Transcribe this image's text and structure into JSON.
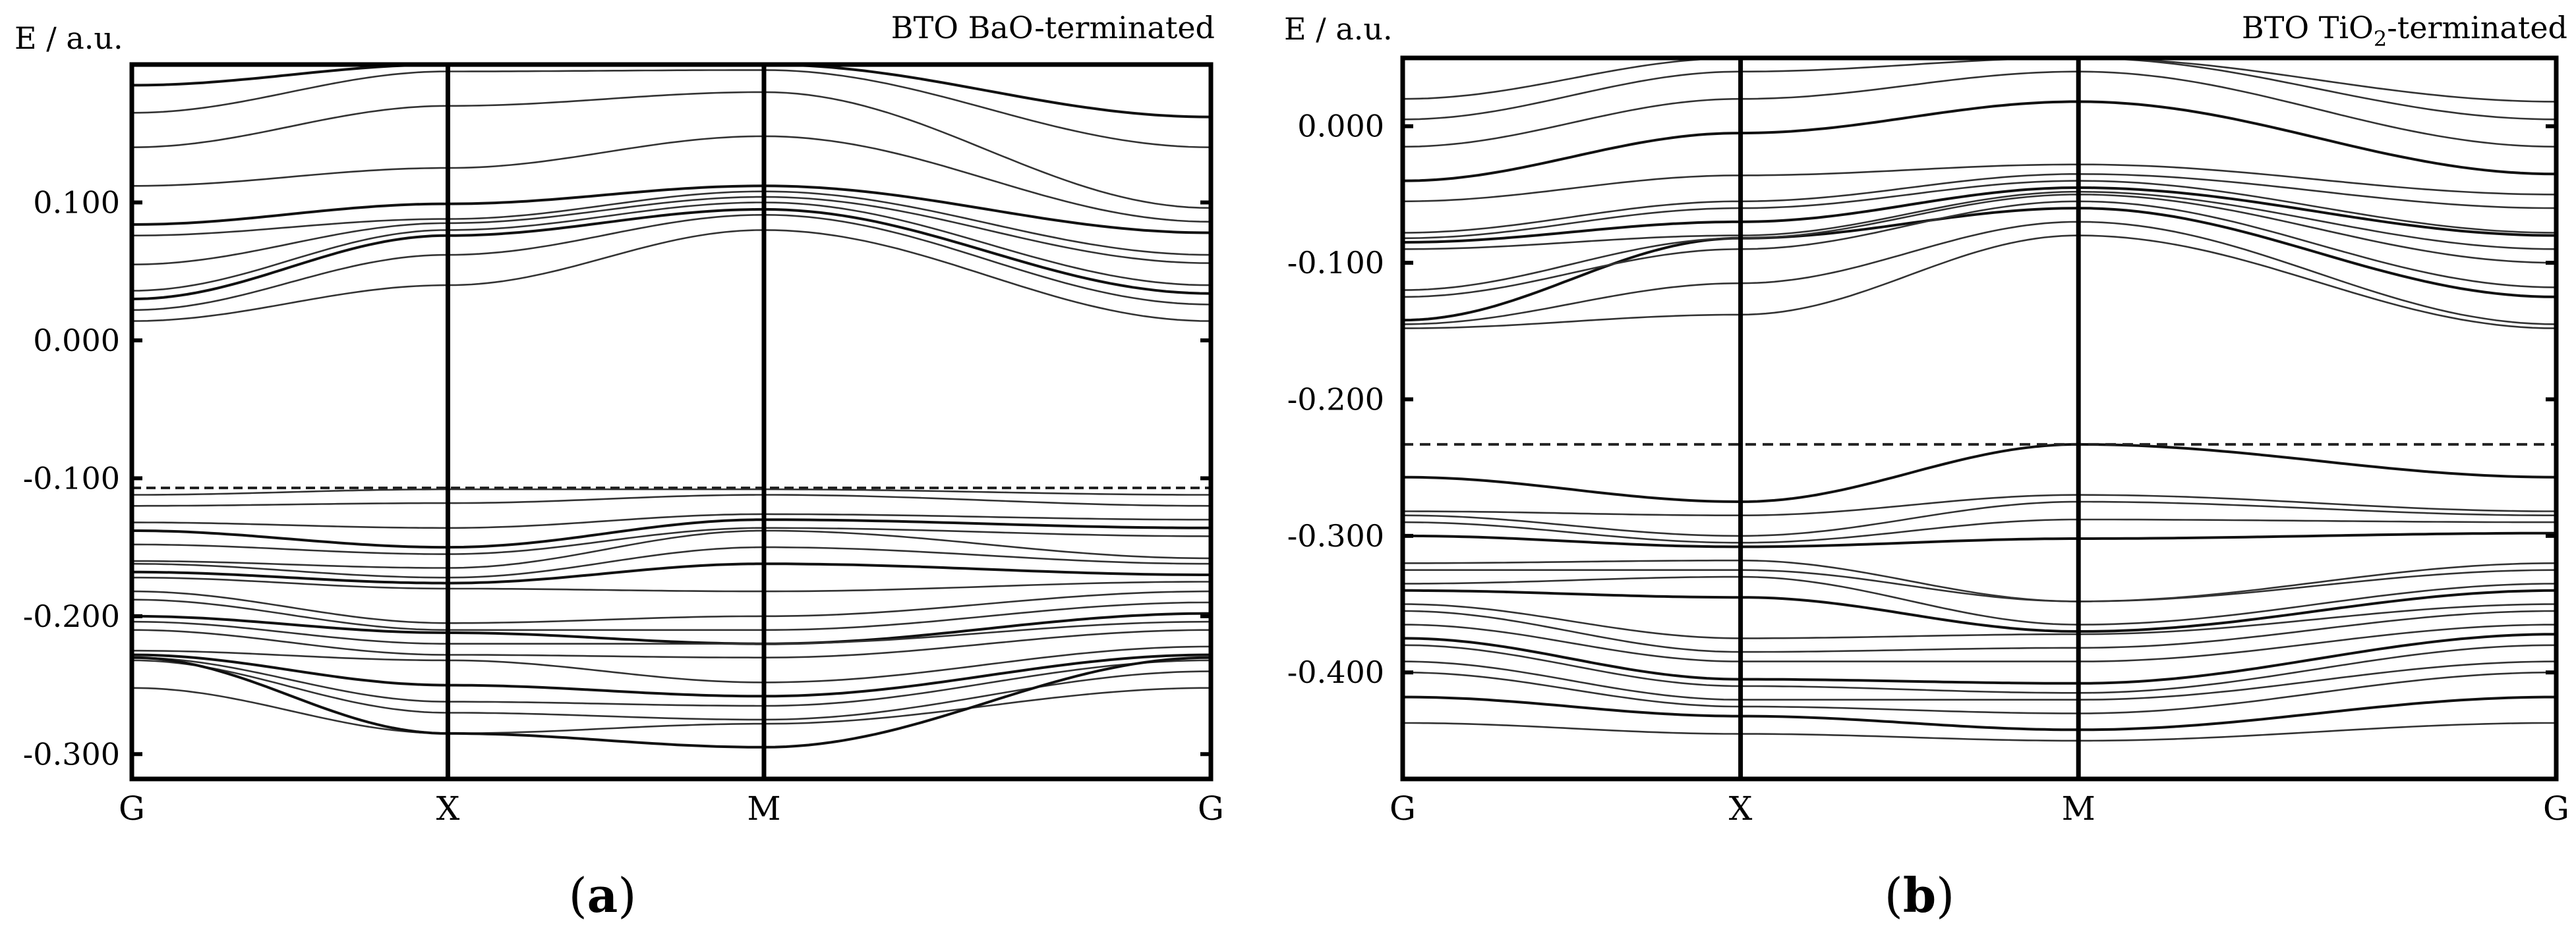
{
  "chart_data": [
    {
      "type": "line",
      "panel": "(a)",
      "panel_letter": "a",
      "title": "BTO BaO-terminated",
      "title_parts": [
        "BTO BaO-terminated"
      ],
      "ylabel": "E / a.u.",
      "xlabel": "",
      "ylim": [
        -0.318,
        0.2
      ],
      "yticks": [
        0.1,
        0.0,
        -0.1,
        -0.2,
        -0.3
      ],
      "ytick_labels": [
        "0.100",
        "0.000",
        "-0.100",
        "-0.200",
        "-0.300"
      ],
      "kpath": [
        "G",
        "X",
        "M",
        "G"
      ],
      "kpoints": [
        0,
        1,
        2,
        3.414
      ],
      "fermi_level": -0.107,
      "fermi_style": "dashed",
      "series": [
        {
          "name": "c1",
          "values": [
            0.014,
            0.04,
            0.08,
            0.014
          ]
        },
        {
          "name": "c2",
          "values": [
            0.022,
            0.062,
            0.091,
            0.026
          ]
        },
        {
          "name": "c3",
          "values": [
            0.03,
            0.076,
            0.095,
            0.034
          ]
        },
        {
          "name": "c4",
          "values": [
            0.036,
            0.08,
            0.1,
            0.04
          ]
        },
        {
          "name": "c5",
          "values": [
            0.055,
            0.085,
            0.104,
            0.056
          ]
        },
        {
          "name": "c6",
          "values": [
            0.076,
            0.088,
            0.108,
            0.062
          ]
        },
        {
          "name": "c7",
          "values": [
            0.084,
            0.099,
            0.112,
            0.078
          ]
        },
        {
          "name": "c8",
          "values": [
            0.112,
            0.125,
            0.148,
            0.086
          ]
        },
        {
          "name": "c9",
          "values": [
            0.14,
            0.17,
            0.18,
            0.096
          ]
        },
        {
          "name": "c10",
          "values": [
            0.165,
            0.195,
            0.196,
            0.14
          ]
        },
        {
          "name": "c11",
          "values": [
            0.185,
            0.2,
            0.2,
            0.162
          ]
        },
        {
          "name": "v1",
          "values": [
            -0.112,
            -0.108,
            -0.108,
            -0.112
          ]
        },
        {
          "name": "v2",
          "values": [
            -0.12,
            -0.118,
            -0.112,
            -0.12
          ]
        },
        {
          "name": "v3",
          "values": [
            -0.132,
            -0.136,
            -0.126,
            -0.13
          ]
        },
        {
          "name": "v4",
          "values": [
            -0.138,
            -0.15,
            -0.13,
            -0.136
          ]
        },
        {
          "name": "v5",
          "values": [
            -0.148,
            -0.155,
            -0.136,
            -0.142
          ]
        },
        {
          "name": "v6",
          "values": [
            -0.16,
            -0.165,
            -0.138,
            -0.158
          ]
        },
        {
          "name": "v7",
          "values": [
            -0.162,
            -0.172,
            -0.15,
            -0.162
          ]
        },
        {
          "name": "v8",
          "values": [
            -0.168,
            -0.176,
            -0.162,
            -0.17
          ]
        },
        {
          "name": "v9",
          "values": [
            -0.172,
            -0.18,
            -0.182,
            -0.175
          ]
        },
        {
          "name": "v10",
          "values": [
            -0.182,
            -0.205,
            -0.2,
            -0.182
          ]
        },
        {
          "name": "v11",
          "values": [
            -0.188,
            -0.21,
            -0.21,
            -0.19
          ]
        },
        {
          "name": "v12",
          "values": [
            -0.2,
            -0.212,
            -0.22,
            -0.198
          ]
        },
        {
          "name": "v13",
          "values": [
            -0.204,
            -0.22,
            -0.22,
            -0.204
          ]
        },
        {
          "name": "v14",
          "values": [
            -0.21,
            -0.228,
            -0.23,
            -0.21
          ]
        },
        {
          "name": "v15",
          "values": [
            -0.225,
            -0.232,
            -0.248,
            -0.222
          ]
        },
        {
          "name": "v16",
          "values": [
            -0.228,
            -0.25,
            -0.258,
            -0.228
          ]
        },
        {
          "name": "v17",
          "values": [
            -0.23,
            -0.262,
            -0.265,
            -0.232
          ]
        },
        {
          "name": "v18",
          "values": [
            -0.232,
            -0.27,
            -0.275,
            -0.24
          ]
        },
        {
          "name": "v19",
          "values": [
            -0.252,
            -0.285,
            -0.278,
            -0.252
          ]
        },
        {
          "name": "v20",
          "values": [
            -0.23,
            -0.285,
            -0.295,
            -0.23
          ]
        }
      ]
    },
    {
      "type": "line",
      "panel": "(b)",
      "panel_letter": "b",
      "title": "BTO TiO2-terminated",
      "title_parts": [
        "BTO TiO",
        "2",
        "-terminated"
      ],
      "ylabel": "E / a.u.",
      "xlabel": "",
      "ylim": [
        -0.478,
        0.05
      ],
      "yticks": [
        0.0,
        -0.1,
        -0.2,
        -0.3,
        -0.4
      ],
      "ytick_labels": [
        "0.000",
        "-0.100",
        "-0.200",
        "-0.300",
        "-0.400"
      ],
      "kpath": [
        "G",
        "X",
        "M",
        "G"
      ],
      "kpoints": [
        0,
        1,
        2,
        3.414
      ],
      "fermi_level": -0.233,
      "fermi_style": "dashed",
      "series": [
        {
          "name": "c1",
          "values": [
            -0.148,
            -0.138,
            -0.08,
            -0.148
          ]
        },
        {
          "name": "c2",
          "values": [
            -0.145,
            -0.115,
            -0.07,
            -0.145
          ]
        },
        {
          "name": "c3",
          "values": [
            -0.142,
            -0.082,
            -0.06,
            -0.125
          ]
        },
        {
          "name": "c4",
          "values": [
            -0.125,
            -0.09,
            -0.055,
            -0.118
          ]
        },
        {
          "name": "c5",
          "values": [
            -0.12,
            -0.082,
            -0.05,
            -0.1
          ]
        },
        {
          "name": "c6",
          "values": [
            -0.09,
            -0.08,
            -0.048,
            -0.09
          ]
        },
        {
          "name": "c7",
          "values": [
            -0.085,
            -0.07,
            -0.045,
            -0.08
          ]
        },
        {
          "name": "c8",
          "values": [
            -0.082,
            -0.06,
            -0.04,
            -0.078
          ]
        },
        {
          "name": "c9",
          "values": [
            -0.078,
            -0.055,
            -0.035,
            -0.06
          ]
        },
        {
          "name": "c10",
          "values": [
            -0.055,
            -0.036,
            -0.028,
            -0.05
          ]
        },
        {
          "name": "c11",
          "values": [
            -0.04,
            -0.005,
            0.018,
            -0.035
          ]
        },
        {
          "name": "c12",
          "values": [
            -0.015,
            0.02,
            0.04,
            -0.015
          ]
        },
        {
          "name": "c13",
          "values": [
            0.005,
            0.04,
            0.05,
            0.005
          ]
        },
        {
          "name": "c14",
          "values": [
            0.02,
            0.05,
            0.05,
            0.018
          ]
        },
        {
          "name": "v1",
          "values": [
            -0.257,
            -0.275,
            -0.233,
            -0.257
          ]
        },
        {
          "name": "v2",
          "values": [
            -0.282,
            -0.285,
            -0.27,
            -0.282
          ]
        },
        {
          "name": "v3",
          "values": [
            -0.285,
            -0.3,
            -0.275,
            -0.285
          ]
        },
        {
          "name": "v4",
          "values": [
            -0.29,
            -0.305,
            -0.288,
            -0.29
          ]
        },
        {
          "name": "v5",
          "values": [
            -0.3,
            -0.308,
            -0.302,
            -0.298
          ]
        },
        {
          "name": "v6",
          "values": [
            -0.32,
            -0.318,
            -0.348,
            -0.32
          ]
        },
        {
          "name": "v7",
          "values": [
            -0.325,
            -0.325,
            -0.348,
            -0.325
          ]
        },
        {
          "name": "v8",
          "values": [
            -0.335,
            -0.33,
            -0.365,
            -0.335
          ]
        },
        {
          "name": "v9",
          "values": [
            -0.34,
            -0.345,
            -0.37,
            -0.34
          ]
        },
        {
          "name": "v10",
          "values": [
            -0.35,
            -0.375,
            -0.372,
            -0.35
          ]
        },
        {
          "name": "v11",
          "values": [
            -0.355,
            -0.385,
            -0.382,
            -0.355
          ]
        },
        {
          "name": "v12",
          "values": [
            -0.365,
            -0.392,
            -0.392,
            -0.365
          ]
        },
        {
          "name": "v13",
          "values": [
            -0.375,
            -0.405,
            -0.408,
            -0.372
          ]
        },
        {
          "name": "v14",
          "values": [
            -0.38,
            -0.41,
            -0.415,
            -0.38
          ]
        },
        {
          "name": "v15",
          "values": [
            -0.392,
            -0.42,
            -0.42,
            -0.392
          ]
        },
        {
          "name": "v16",
          "values": [
            -0.4,
            -0.425,
            -0.43,
            -0.4
          ]
        },
        {
          "name": "v17",
          "values": [
            -0.418,
            -0.432,
            -0.442,
            -0.418
          ]
        },
        {
          "name": "v18",
          "values": [
            -0.437,
            -0.445,
            -0.45,
            -0.437
          ]
        }
      ]
    }
  ]
}
